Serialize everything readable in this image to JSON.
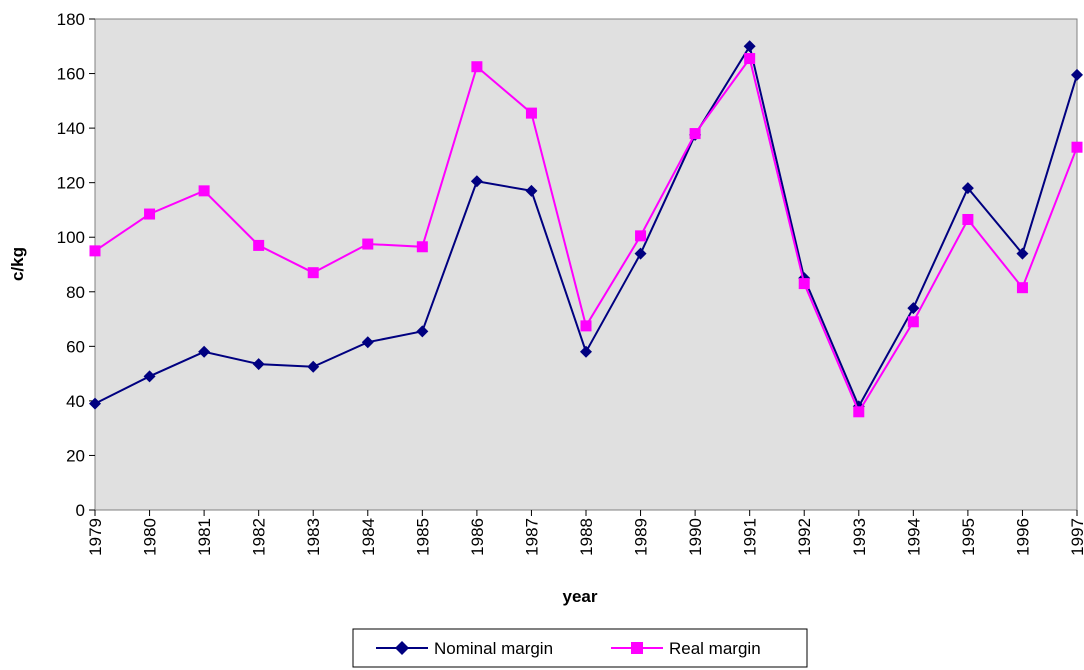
{
  "chart_data": {
    "type": "line",
    "title": "",
    "xlabel": "year",
    "ylabel": "c/kg",
    "ylim": [
      0,
      180
    ],
    "ytick_step": 20,
    "grid": false,
    "plot_background": "#e0e0e0",
    "legend_position": "bottom-center",
    "x": [
      "1979",
      "1980",
      "1981",
      "1982",
      "1983",
      "1984",
      "1985",
      "1986",
      "1987",
      "1988",
      "1989",
      "1990",
      "1991",
      "1992",
      "1993",
      "1994",
      "1995",
      "1996",
      "1997"
    ],
    "series": [
      {
        "name": "Nominal margin",
        "color": "#000080",
        "marker": "diamond",
        "values": [
          39,
          49,
          58,
          53.5,
          52.5,
          61.5,
          65.5,
          120.5,
          117,
          58,
          94,
          137.5,
          170,
          85,
          38,
          74,
          118,
          94,
          159.5
        ]
      },
      {
        "name": "Real margin",
        "color": "#ff00ff",
        "marker": "square",
        "values": [
          95,
          108.5,
          117,
          97,
          87,
          97.5,
          96.5,
          162.5,
          145.5,
          67.5,
          100.5,
          138,
          165.5,
          83,
          36,
          69,
          106.5,
          81.5,
          133
        ]
      }
    ]
  }
}
